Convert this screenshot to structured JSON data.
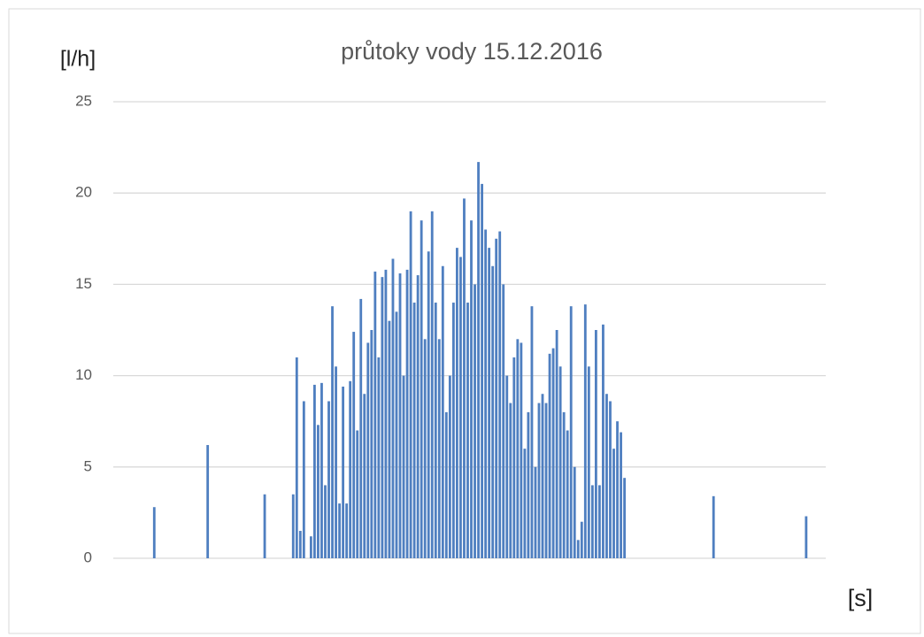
{
  "chart_data": {
    "type": "bar",
    "title": "průtoky vody 15.12.2016",
    "ylabel": "[l/h]",
    "xlabel": "[s]",
    "categories": [
      null,
      null,
      null,
      null,
      null,
      null,
      null,
      null,
      null,
      null,
      null,
      null,
      null,
      null,
      null,
      null,
      null,
      null,
      null,
      null,
      null,
      null,
      null,
      null,
      null,
      null,
      null,
      null,
      null,
      null,
      null,
      null,
      null,
      null,
      null,
      null,
      null,
      null,
      null,
      null,
      null,
      null,
      null,
      null,
      null,
      null,
      null,
      null,
      null,
      null,
      null,
      null,
      null,
      null,
      null,
      null,
      null,
      null,
      null,
      null,
      null,
      null,
      null,
      null,
      null,
      null,
      null,
      null,
      null,
      null,
      null,
      null,
      null,
      null,
      null,
      null,
      null,
      null,
      null,
      null,
      null,
      null,
      null,
      null,
      null,
      null,
      null,
      null,
      null,
      null,
      null,
      null,
      null,
      null,
      null,
      null,
      null,
      null,
      null,
      null,
      null,
      null,
      null,
      null,
      null,
      null,
      null,
      null,
      null,
      null,
      null,
      null,
      null,
      null,
      null,
      null,
      null,
      null,
      null,
      null,
      null,
      null,
      null,
      null,
      null,
      null,
      null,
      null,
      null,
      null,
      null,
      null,
      null,
      null,
      null,
      null,
      null,
      null,
      null,
      null,
      null,
      null,
      null,
      null,
      null,
      null,
      null,
      null,
      null,
      null,
      null,
      null,
      null,
      null,
      null,
      null,
      null,
      null,
      null,
      null,
      null,
      null,
      null,
      null,
      null,
      null,
      null,
      null,
      null,
      null,
      null,
      null,
      null,
      null,
      null,
      null,
      null,
      null,
      null,
      null,
      null,
      null,
      null,
      null,
      null,
      null,
      null,
      null,
      null,
      null,
      null,
      null,
      null,
      null,
      null,
      null,
      null,
      null,
      null,
      null
    ],
    "values": [
      0,
      0,
      0,
      0,
      0,
      0,
      0,
      0,
      0,
      0,
      0,
      2.8,
      0,
      0,
      0,
      0,
      0,
      0,
      0,
      0,
      0,
      0,
      0,
      0,
      0,
      0,
      6.2,
      0,
      0,
      0,
      0,
      0,
      0,
      0,
      0,
      0,
      0,
      0,
      0,
      0,
      0,
      0,
      3.5,
      0,
      0,
      0,
      0,
      0,
      0,
      0,
      3.5,
      11,
      1.5,
      8.6,
      0,
      1.2,
      9.5,
      7.3,
      9.6,
      4,
      8.6,
      13.8,
      10.5,
      3,
      9.4,
      3,
      9.7,
      12.4,
      7,
      14.2,
      9,
      11.8,
      12.5,
      15.7,
      11,
      15.4,
      15.8,
      13,
      16.4,
      13.5,
      15.6,
      10,
      15.8,
      19,
      14,
      15.5,
      18.5,
      12,
      16.8,
      19,
      14,
      12,
      16,
      8,
      10,
      14,
      17,
      16.5,
      19.7,
      14,
      18.5,
      15,
      21.7,
      20.5,
      18,
      17,
      16,
      17.5,
      17.9,
      15,
      10,
      8.5,
      11,
      12,
      11.8,
      6,
      8,
      13.8,
      5,
      8.5,
      9,
      8.5,
      11.2,
      11.5,
      12.5,
      10.5,
      8,
      7,
      13.8,
      5,
      1,
      2,
      13.9,
      10.5,
      4,
      12.5,
      4,
      12.8,
      9,
      8.6,
      6,
      7.5,
      6.9,
      4.4,
      0,
      0,
      0,
      0,
      0,
      0,
      0,
      0,
      0,
      0,
      0,
      0,
      0,
      0,
      0,
      0,
      0,
      0,
      0,
      0,
      0,
      0,
      0,
      0,
      3.4,
      0,
      0,
      0,
      0,
      0,
      0,
      0,
      0,
      0,
      0,
      0,
      0,
      0,
      0,
      0,
      0,
      0,
      0,
      0,
      0,
      0,
      0,
      0,
      0,
      0,
      2.3,
      0,
      0,
      0,
      0,
      0
    ],
    "color": "#4f7fc0",
    "ylim": [
      0,
      25
    ],
    "yticks": [
      0,
      5,
      10,
      15,
      20,
      25
    ],
    "grid": true
  }
}
